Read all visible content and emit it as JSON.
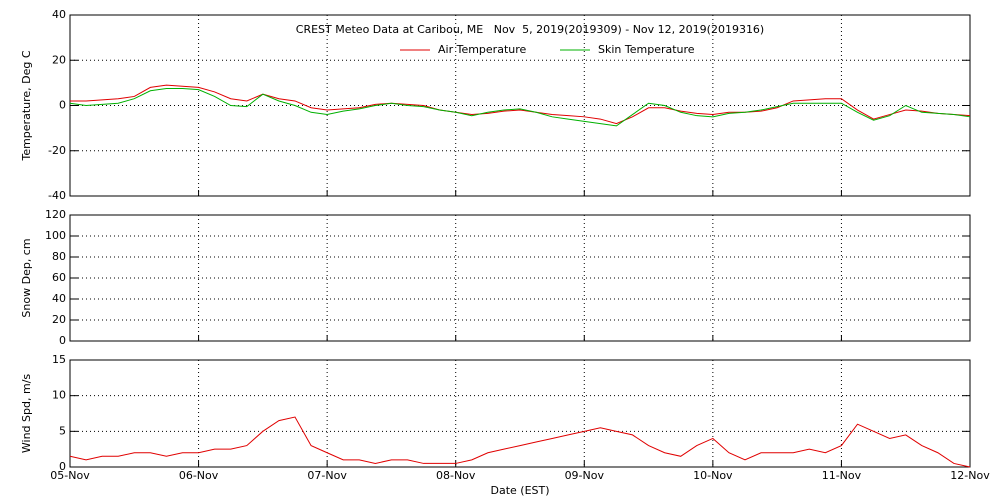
{
  "chart_data": [
    {
      "type": "line",
      "title": "CREST Meteo Data at Caribou, ME   Nov  5, 2019(2019309) - Nov 12, 2019(2019316)",
      "ylabel": "Temperature, Deg C",
      "ylim": [
        -40,
        40
      ],
      "yticks": [
        -40,
        -20,
        0,
        20,
        40
      ],
      "xlim": [
        0,
        7
      ],
      "xticks": [
        0,
        1,
        2,
        3,
        4,
        5,
        6,
        7
      ],
      "grid": true,
      "x": [
        0,
        0.125,
        0.25,
        0.375,
        0.5,
        0.625,
        0.75,
        0.875,
        1,
        1.125,
        1.25,
        1.375,
        1.5,
        1.625,
        1.75,
        1.875,
        2,
        2.125,
        2.25,
        2.375,
        2.5,
        2.625,
        2.75,
        2.875,
        3,
        3.125,
        3.25,
        3.375,
        3.5,
        3.625,
        3.75,
        3.875,
        4,
        4.125,
        4.25,
        4.375,
        4.5,
        4.625,
        4.75,
        4.875,
        5,
        5.125,
        5.25,
        5.375,
        5.5,
        5.625,
        5.75,
        5.875,
        6,
        6.125,
        6.25,
        6.375,
        6.5,
        6.625,
        6.75,
        6.875,
        7
      ],
      "series": [
        {
          "name": "Air Temperature",
          "color": "#e00000",
          "values": [
            2,
            2,
            2.5,
            3,
            4,
            8,
            9,
            8.5,
            8,
            6,
            3,
            2,
            5,
            3,
            2,
            -1,
            -2,
            -1.5,
            -1,
            0.5,
            1,
            0.5,
            0,
            -2,
            -3,
            -4,
            -3.5,
            -2.5,
            -2,
            -3,
            -4,
            -4.5,
            -5,
            -6,
            -8,
            -5,
            -1,
            -1,
            -2.5,
            -3.5,
            -4,
            -3,
            -3,
            -2.5,
            -1,
            2,
            2.5,
            3,
            3,
            -2,
            -6,
            -4,
            -2,
            -2.5,
            -3.5,
            -4,
            -4.5
          ]
        },
        {
          "name": "Skin Temperature",
          "color": "#00b000",
          "values": [
            1,
            0,
            0.5,
            1,
            3,
            6.5,
            7.5,
            7.5,
            7,
            4,
            0,
            -0.5,
            5,
            2,
            0,
            -3,
            -4,
            -2.5,
            -1.5,
            0,
            1,
            0,
            -0.5,
            -2,
            -3,
            -4.5,
            -3,
            -2,
            -1.5,
            -3,
            -5,
            -6,
            -7,
            -8,
            -9,
            -4,
            1,
            0,
            -3,
            -4.5,
            -5,
            -3.5,
            -3,
            -2,
            -0.5,
            1,
            1,
            1,
            1,
            -3,
            -6.5,
            -4.5,
            0,
            -3,
            -3.5,
            -4,
            -5
          ]
        }
      ]
    },
    {
      "type": "line",
      "ylabel": "Snow Dep, cm",
      "ylim": [
        0,
        120
      ],
      "yticks": [
        0,
        20,
        40,
        60,
        80,
        100,
        120
      ],
      "xlim": [
        0,
        7
      ],
      "xticks": [
        0,
        1,
        2,
        3,
        4,
        5,
        6,
        7
      ],
      "grid": true,
      "series": []
    },
    {
      "type": "line",
      "ylabel": "Wind Spd, m/s",
      "xlabel": "Date (EST)",
      "ylim": [
        0,
        15
      ],
      "yticks": [
        0,
        5,
        10,
        15
      ],
      "xlim": [
        0,
        7
      ],
      "grid": true,
      "xticks": [
        {
          "value": 0,
          "label": "05-Nov"
        },
        {
          "value": 1,
          "label": "06-Nov"
        },
        {
          "value": 2,
          "label": "07-Nov"
        },
        {
          "value": 3,
          "label": "08-Nov"
        },
        {
          "value": 4,
          "label": "09-Nov"
        },
        {
          "value": 5,
          "label": "10-Nov"
        },
        {
          "value": 6,
          "label": "11-Nov"
        },
        {
          "value": 7,
          "label": "12-Nov"
        }
      ],
      "x": [
        0,
        0.125,
        0.25,
        0.375,
        0.5,
        0.625,
        0.75,
        0.875,
        1,
        1.125,
        1.25,
        1.375,
        1.5,
        1.625,
        1.75,
        1.875,
        2,
        2.125,
        2.25,
        2.375,
        2.5,
        2.625,
        2.75,
        2.875,
        3,
        3.125,
        3.25,
        3.375,
        3.5,
        3.625,
        3.75,
        3.875,
        4,
        4.125,
        4.25,
        4.375,
        4.5,
        4.625,
        4.75,
        4.875,
        5,
        5.125,
        5.25,
        5.375,
        5.5,
        5.625,
        5.75,
        5.875,
        6,
        6.125,
        6.25,
        6.375,
        6.5,
        6.625,
        6.75,
        6.875,
        7
      ],
      "series": [
        {
          "color": "#e00000",
          "values": [
            1.5,
            1,
            1.5,
            1.5,
            2,
            2,
            1.5,
            2,
            2,
            2.5,
            2.5,
            3,
            5,
            6.5,
            7,
            3,
            2,
            1,
            1,
            0.5,
            1,
            1,
            0.5,
            0.5,
            0.5,
            1,
            2,
            2.5,
            3,
            3.5,
            4,
            4.5,
            5,
            5.5,
            5,
            4.5,
            3,
            2,
            1.5,
            3,
            4,
            2,
            1,
            2,
            2,
            2,
            2.5,
            2,
            3,
            6,
            5,
            4,
            4.5,
            3,
            2,
            0.5,
            0
          ]
        }
      ]
    }
  ]
}
